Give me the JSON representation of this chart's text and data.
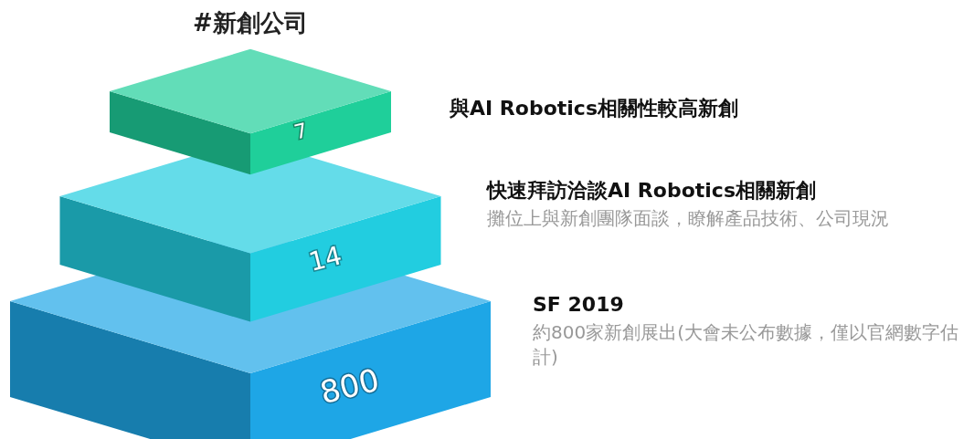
{
  "chart_data": {
    "type": "other",
    "title": "#新創公司",
    "categories": [
      "與AI Robotics相關性較高新創",
      "快速拜訪洽談AI Robotics相關新創",
      "SF 2019"
    ],
    "values": [
      7,
      14,
      800
    ],
    "colors": [
      "#1fcf9a",
      "#22cde0",
      "#1ea6e6"
    ],
    "annotations": [
      "攤位上與新創團隊面談，瞭解產品技術、公司現況",
      "約800家新創展出(大會未公布數據，僅以官網數字估計)"
    ],
    "data_labels": true
  }
}
